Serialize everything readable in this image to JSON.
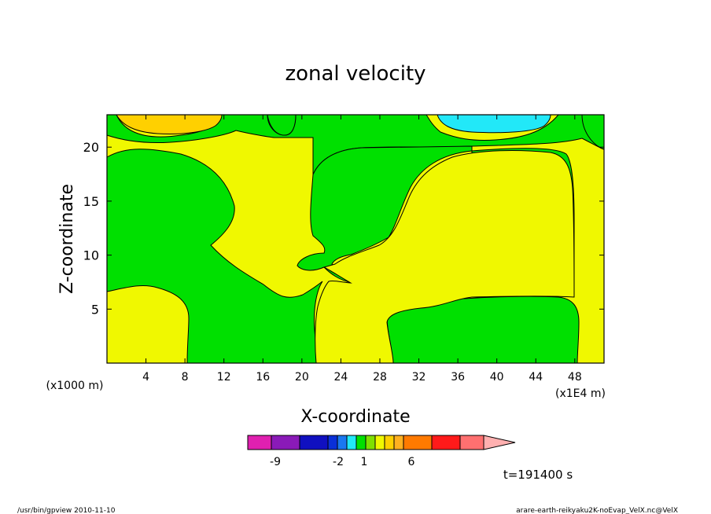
{
  "chart_data": {
    "type": "heatmap",
    "title": "zonal velocity",
    "xlabel": "X-coordinate",
    "ylabel": "Z-coordinate",
    "x_unit_left": "(x1000 m)",
    "x_unit_right": "(x1E4 m)",
    "xlim": [
      0,
      51
    ],
    "ylim": [
      0,
      23
    ],
    "x_ticks": [
      "4",
      "8",
      "12",
      "16",
      "20",
      "24",
      "28",
      "32",
      "36",
      "40",
      "44",
      "48"
    ],
    "x_tick_values": [
      4,
      8,
      12,
      16,
      20,
      24,
      28,
      32,
      36,
      40,
      44,
      48
    ],
    "y_ticks": [
      "5",
      "10",
      "15",
      "20"
    ],
    "y_tick_values": [
      5,
      10,
      15,
      20
    ],
    "colorbar": {
      "colors": [
        "#e020b0",
        "#8a1ab8",
        "#1010c0",
        "#0a30d8",
        "#1a78f0",
        "#22e8f8",
        "#00e000",
        "#7fe000",
        "#f0f800",
        "#ffd000",
        "#ffb020",
        "#ff7a00",
        "#ff1a1a",
        "#ff7070",
        "#ffb0b0"
      ],
      "tick_labels": [
        "-9",
        "-2",
        "1",
        "6"
      ],
      "tick_boundary_index": [
        2,
        5,
        7,
        11
      ]
    },
    "regions": [
      {
        "value_range": "1 to 2",
        "color": "#f0f800",
        "role": "background"
      },
      {
        "value_range": "0 to 1",
        "color": "#00e000",
        "role": "left and middle lobes, right lower block, top margins"
      },
      {
        "value_range": "2 to 3",
        "color": "#ffd000",
        "role": "top-left patch"
      },
      {
        "value_range": "-2 to -1",
        "color": "#22e8f8",
        "role": "top-right patch"
      }
    ],
    "time_label": "t=191400 s"
  },
  "footer": {
    "left": "/usr/bin/gpview   2010-11-10",
    "right": "arare-earth-reikyaku2K-noEvap_VelX.nc@VelX"
  },
  "colors": {
    "yellow": "#f0f800",
    "green": "#00e000",
    "orange": "#ffd000",
    "cyan": "#22e8f8"
  }
}
